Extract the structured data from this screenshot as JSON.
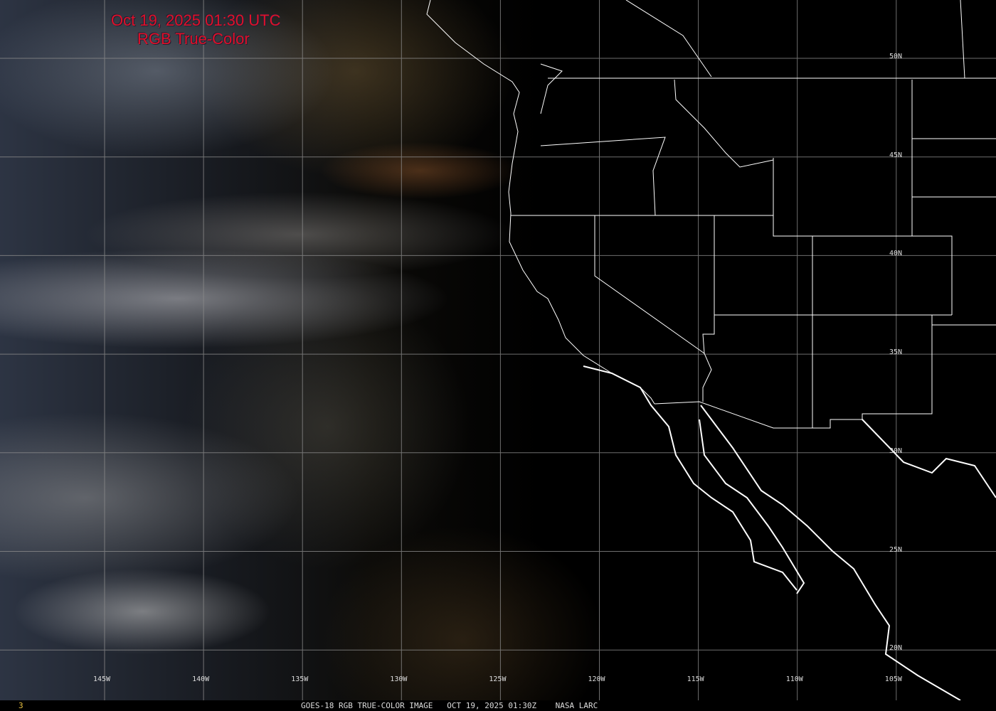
{
  "title": {
    "line1": "Oct 19, 2025 01:30 UTC",
    "line2": "RGB True-Color",
    "color": "#e0102a"
  },
  "longitude_labels": [
    "145W",
    "140W",
    "135W",
    "130W",
    "125W",
    "120W",
    "115W",
    "110W",
    "105W"
  ],
  "latitude_labels": [
    "50N",
    "45N",
    "40N",
    "35N",
    "30N",
    "25N",
    "20N"
  ],
  "footer": {
    "frame_number": "3",
    "caption": "GOES-18 RGB TRUE-COLOR IMAGE   OCT 19, 2025 01:30Z    NASA LARC"
  },
  "colors": {
    "grid": "#9a9a9a",
    "borders": "#ffffff",
    "background": "#000000"
  }
}
